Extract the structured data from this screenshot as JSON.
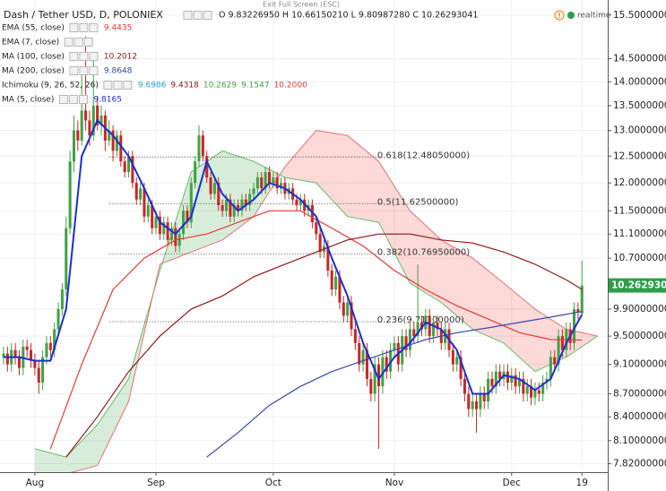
{
  "chart_data": {
    "type": "candlestick",
    "title": "Dash / Tether USD, D, POLONIEX",
    "ohlc_text": "O 9.83226950 H 10.66150210 L 9.80987280 C 10.26293041",
    "fullscreen_text": "Exit Full Screen (ESC)",
    "realtime_text": "realtime",
    "log_scale": true,
    "grid": true,
    "up_color": "#43a047",
    "down_color": "#c62828",
    "ylim": [
      7.72,
      15.86
    ],
    "xlim": [
      -0.92,
      154.6
    ],
    "yticks": [
      {
        "value": 15.5,
        "label": "15.50000000"
      },
      {
        "value": 14.5,
        "label": "14.50000000"
      },
      {
        "value": 14,
        "label": "14.00000000"
      },
      {
        "value": 13.5,
        "label": "13.50000000"
      },
      {
        "value": 13,
        "label": "13.00000000"
      },
      {
        "value": 12.5,
        "label": "12.50000000"
      },
      {
        "value": 12,
        "label": "12.00000000"
      },
      {
        "value": 11.5,
        "label": "11.50000000"
      },
      {
        "value": 11.1,
        "label": "11.10000000"
      },
      {
        "value": 10.7,
        "label": "10.70000000"
      },
      {
        "value": 9.9,
        "label": "9.90000000"
      },
      {
        "value": 9.5,
        "label": "9.50000000"
      },
      {
        "value": 9.1,
        "label": "9.10000000"
      },
      {
        "value": 8.7,
        "label": "8.70000000"
      },
      {
        "value": 8.4,
        "label": "8.40000000"
      },
      {
        "value": 8.1,
        "label": "8.10000000"
      },
      {
        "value": 7.82,
        "label": "7.82000000"
      }
    ],
    "xticks": [
      {
        "value": 8,
        "label": "Aug"
      },
      {
        "value": 39,
        "label": "Sep"
      },
      {
        "value": 69,
        "label": "Oct"
      },
      {
        "value": 100,
        "label": "Nov"
      },
      {
        "value": 130,
        "label": "Dec"
      },
      {
        "value": 148,
        "label": "19"
      }
    ],
    "last_price": 10.26293041,
    "candles": [
      [
        9.2,
        9.35,
        9.1,
        9.25
      ],
      [
        9.25,
        9.35,
        9.0,
        9.1
      ],
      [
        9.1,
        9.4,
        9.0,
        9.3
      ],
      [
        9.3,
        9.4,
        9.1,
        9.2
      ],
      [
        9.2,
        9.3,
        8.95,
        9.05
      ],
      [
        9.05,
        9.45,
        8.95,
        9.35
      ],
      [
        9.35,
        9.45,
        9.2,
        9.3
      ],
      [
        9.3,
        9.4,
        9.05,
        9.15
      ],
      [
        9.15,
        9.25,
        8.95,
        9.05
      ],
      [
        9.05,
        9.15,
        8.7,
        8.85
      ],
      [
        8.85,
        9.3,
        8.75,
        9.2
      ],
      [
        9.2,
        9.5,
        9.1,
        9.4
      ],
      [
        9.4,
        9.5,
        9.2,
        9.3
      ],
      [
        9.3,
        9.7,
        9.2,
        9.6
      ],
      [
        9.6,
        10.0,
        9.5,
        9.9
      ],
      [
        9.9,
        10.3,
        9.8,
        10.2
      ],
      [
        10.2,
        11.4,
        10.1,
        11.2
      ],
      [
        11.2,
        12.6,
        11.1,
        12.4
      ],
      [
        12.4,
        13.3,
        12.2,
        13.0
      ],
      [
        13.0,
        13.2,
        12.6,
        12.8
      ],
      [
        12.8,
        14.2,
        12.7,
        13.4
      ],
      [
        13.4,
        15.0,
        13.0,
        13.2
      ],
      [
        13.2,
        13.4,
        12.7,
        12.9
      ],
      [
        12.9,
        14.5,
        12.8,
        13.5
      ],
      [
        13.5,
        13.7,
        13.0,
        13.1
      ],
      [
        13.1,
        13.5,
        12.9,
        13.3
      ],
      [
        13.3,
        13.4,
        12.6,
        12.8
      ],
      [
        12.8,
        13.2,
        12.7,
        13.0
      ],
      [
        13.0,
        13.1,
        12.4,
        12.6
      ],
      [
        12.6,
        13.0,
        12.5,
        12.9
      ],
      [
        12.9,
        13.0,
        12.3,
        12.4
      ],
      [
        12.4,
        12.5,
        12.1,
        12.2
      ],
      [
        12.2,
        12.6,
        12.1,
        12.5
      ],
      [
        12.5,
        12.6,
        11.9,
        12.0
      ],
      [
        12.0,
        12.1,
        11.6,
        11.7
      ],
      [
        11.7,
        12.0,
        11.6,
        11.9
      ],
      [
        11.9,
        12.0,
        11.3,
        11.4
      ],
      [
        11.4,
        11.7,
        11.3,
        11.6
      ],
      [
        11.6,
        11.7,
        11.1,
        11.2
      ],
      [
        11.2,
        11.5,
        11.1,
        11.4
      ],
      [
        11.4,
        11.5,
        11.0,
        11.1
      ],
      [
        11.1,
        11.4,
        11.0,
        11.3
      ],
      [
        11.3,
        11.4,
        10.9,
        11.0
      ],
      [
        11.0,
        11.3,
        10.9,
        11.2
      ],
      [
        11.2,
        11.3,
        10.8,
        10.9
      ],
      [
        10.9,
        11.2,
        10.8,
        11.1
      ],
      [
        11.1,
        11.6,
        11.0,
        11.5
      ],
      [
        11.5,
        11.6,
        11.2,
        11.3
      ],
      [
        11.3,
        12.1,
        11.2,
        12.0
      ],
      [
        12.0,
        12.5,
        11.9,
        12.4
      ],
      [
        12.4,
        13.1,
        12.3,
        12.9
      ],
      [
        12.9,
        13.0,
        12.4,
        12.5
      ],
      [
        12.5,
        12.6,
        12.0,
        12.1
      ],
      [
        12.1,
        12.2,
        11.7,
        11.8
      ],
      [
        11.8,
        12.1,
        11.7,
        12.0
      ],
      [
        12.0,
        12.1,
        11.5,
        11.6
      ],
      [
        11.6,
        11.7,
        11.4,
        11.5
      ],
      [
        11.5,
        11.8,
        11.4,
        11.7
      ],
      [
        11.7,
        11.8,
        11.3,
        11.4
      ],
      [
        11.4,
        11.7,
        11.3,
        11.6
      ],
      [
        11.6,
        11.7,
        11.4,
        11.5
      ],
      [
        11.5,
        11.8,
        11.4,
        11.7
      ],
      [
        11.7,
        11.8,
        11.5,
        11.6
      ],
      [
        11.6,
        11.9,
        11.5,
        11.8
      ],
      [
        11.8,
        12.0,
        11.7,
        11.9
      ],
      [
        11.9,
        12.2,
        11.8,
        12.1
      ],
      [
        12.1,
        12.2,
        11.8,
        11.9
      ],
      [
        11.9,
        12.3,
        11.8,
        12.2
      ],
      [
        12.2,
        12.3,
        11.9,
        12.0
      ],
      [
        12.0,
        12.2,
        11.9,
        12.1
      ],
      [
        12.1,
        12.2,
        11.8,
        11.9
      ],
      [
        11.9,
        12.1,
        11.8,
        12.0
      ],
      [
        12.0,
        12.1,
        11.7,
        11.8
      ],
      [
        11.8,
        12.0,
        11.7,
        11.9
      ],
      [
        11.9,
        12.0,
        11.6,
        11.7
      ],
      [
        11.7,
        11.8,
        11.5,
        11.6
      ],
      [
        11.6,
        11.8,
        11.5,
        11.7
      ],
      [
        11.7,
        11.8,
        11.4,
        11.5
      ],
      [
        11.5,
        11.7,
        11.4,
        11.6
      ],
      [
        11.6,
        11.7,
        11.2,
        11.3
      ],
      [
        11.3,
        11.4,
        11.0,
        11.1
      ],
      [
        11.1,
        11.2,
        10.7,
        10.8
      ],
      [
        10.8,
        11.0,
        10.7,
        10.9
      ],
      [
        10.9,
        11.0,
        10.4,
        10.5
      ],
      [
        10.5,
        10.6,
        10.1,
        10.2
      ],
      [
        10.2,
        10.5,
        10.1,
        10.4
      ],
      [
        10.4,
        10.5,
        9.9,
        10.0
      ],
      [
        10.0,
        10.1,
        9.7,
        9.8
      ],
      [
        9.8,
        10.1,
        9.7,
        10.0
      ],
      [
        10.0,
        10.1,
        9.5,
        9.6
      ],
      [
        9.6,
        9.7,
        9.3,
        9.4
      ],
      [
        9.4,
        9.5,
        9.0,
        9.1
      ],
      [
        9.1,
        9.4,
        9.0,
        9.3
      ],
      [
        9.3,
        9.4,
        8.8,
        8.9
      ],
      [
        8.9,
        9.0,
        8.6,
        8.7
      ],
      [
        8.7,
        9.2,
        8.6,
        9.1
      ],
      [
        9.1,
        9.2,
        8.0,
        8.8
      ],
      [
        8.8,
        9.3,
        8.7,
        9.2
      ],
      [
        9.2,
        9.3,
        8.9,
        9.0
      ],
      [
        9.0,
        9.4,
        8.9,
        9.3
      ],
      [
        9.3,
        9.5,
        9.2,
        9.4
      ],
      [
        9.4,
        9.5,
        9.0,
        9.1
      ],
      [
        9.1,
        9.6,
        9.0,
        9.5
      ],
      [
        9.5,
        9.6,
        9.2,
        9.3
      ],
      [
        9.3,
        9.7,
        9.2,
        9.6
      ],
      [
        9.6,
        9.7,
        9.4,
        9.5
      ],
      [
        9.5,
        10.6,
        9.4,
        9.7
      ],
      [
        9.7,
        9.8,
        9.5,
        9.6
      ],
      [
        9.6,
        9.9,
        9.5,
        9.8
      ],
      [
        9.8,
        9.9,
        9.4,
        9.5
      ],
      [
        9.5,
        9.8,
        9.4,
        9.7
      ],
      [
        9.7,
        9.8,
        9.5,
        9.6
      ],
      [
        9.6,
        9.7,
        9.3,
        9.4
      ],
      [
        9.4,
        9.7,
        9.3,
        9.6
      ],
      [
        9.6,
        9.7,
        9.2,
        9.3
      ],
      [
        9.3,
        9.4,
        9.0,
        9.1
      ],
      [
        9.1,
        9.3,
        9.0,
        9.2
      ],
      [
        9.2,
        9.3,
        8.8,
        8.9
      ],
      [
        8.9,
        9.0,
        8.6,
        8.7
      ],
      [
        8.7,
        8.8,
        8.4,
        8.5
      ],
      [
        8.5,
        8.7,
        8.4,
        8.6
      ],
      [
        8.6,
        8.7,
        8.2,
        8.5
      ],
      [
        8.5,
        8.8,
        8.4,
        8.7
      ],
      [
        8.7,
        8.8,
        8.5,
        8.6
      ],
      [
        8.6,
        9.0,
        8.5,
        8.9
      ],
      [
        8.9,
        9.0,
        8.7,
        8.8
      ],
      [
        8.8,
        9.1,
        8.7,
        9.0
      ],
      [
        9.0,
        9.1,
        8.8,
        8.9
      ],
      [
        8.9,
        9.1,
        8.8,
        9.0
      ],
      [
        9.0,
        9.1,
        8.75,
        8.85
      ],
      [
        8.85,
        9.05,
        8.75,
        8.95
      ],
      [
        8.95,
        9.05,
        8.7,
        8.8
      ],
      [
        8.8,
        9.0,
        8.7,
        8.9
      ],
      [
        8.9,
        9.0,
        8.6,
        8.7
      ],
      [
        8.7,
        8.9,
        8.6,
        8.8
      ],
      [
        8.8,
        8.9,
        8.55,
        8.65
      ],
      [
        8.65,
        8.85,
        8.55,
        8.75
      ],
      [
        8.75,
        8.85,
        8.6,
        8.7
      ],
      [
        8.7,
        8.95,
        8.6,
        8.85
      ],
      [
        8.85,
        9.0,
        8.75,
        8.9
      ],
      [
        8.9,
        9.3,
        8.8,
        9.2
      ],
      [
        9.2,
        9.3,
        9.0,
        9.1
      ],
      [
        9.1,
        9.6,
        9.0,
        9.5
      ],
      [
        9.5,
        9.6,
        9.2,
        9.3
      ],
      [
        9.3,
        9.7,
        9.2,
        9.6
      ],
      [
        9.6,
        9.7,
        9.3,
        9.4
      ],
      [
        9.4,
        10.0,
        9.3,
        9.9
      ],
      [
        9.9,
        10.0,
        9.75,
        9.85
      ],
      [
        9.8322695,
        10.6615021,
        9.8098728,
        10.26293041
      ]
    ],
    "fib_x": [
      27,
      97
    ],
    "fib": [
      {
        "level": 12.4805,
        "label": "0.618(12.48050000)"
      },
      {
        "level": 11.625,
        "label": "0.5(11.62500000)"
      },
      {
        "level": 10.7695,
        "label": "0.382(10.76950000)"
      },
      {
        "level": 9.711,
        "label": "0.236(9.71100000)"
      }
    ],
    "series": [
      {
        "name": "EMA (55, close)",
        "color": "#e53935",
        "legend_values": [
          "9.4435"
        ],
        "x": [
          12,
          20,
          28,
          36,
          44,
          52,
          60,
          68,
          76,
          84,
          92,
          100,
          108,
          116,
          124,
          132,
          140,
          148
        ],
        "values": [
          8.0,
          9.1,
          10.2,
          10.7,
          11.0,
          11.1,
          11.3,
          11.5,
          11.5,
          11.2,
          10.9,
          10.5,
          10.2,
          9.95,
          9.75,
          9.55,
          9.45,
          9.4435
        ]
      },
      {
        "name": "EMA (7, close)",
        "color": "#2e7d32",
        "legend_values": []
      },
      {
        "name": "MA (100, close)",
        "color": "#8b1a1a",
        "legend_values": [
          "10.2012"
        ],
        "x": [
          16,
          24,
          32,
          40,
          48,
          56,
          64,
          72,
          80,
          88,
          96,
          104,
          112,
          120,
          128,
          136,
          144,
          148
        ],
        "values": [
          7.9,
          8.4,
          9.0,
          9.5,
          9.9,
          10.1,
          10.4,
          10.6,
          10.8,
          11.0,
          11.1,
          11.1,
          11.0,
          10.95,
          10.8,
          10.6,
          10.35,
          10.2012
        ]
      },
      {
        "name": "MA (200, close)",
        "color": "#3949ab",
        "legend_values": [
          "9.8648"
        ],
        "x": [
          52,
          60,
          68,
          76,
          84,
          92,
          100,
          108,
          116,
          124,
          132,
          140,
          148
        ],
        "values": [
          7.9,
          8.2,
          8.55,
          8.8,
          9.0,
          9.15,
          9.3,
          9.45,
          9.55,
          9.62,
          9.7,
          9.78,
          9.8648
        ]
      },
      {
        "name": "Ichimoku (9, 26, 52, 26)",
        "color": "#4caf50",
        "legend_values": [
          "9.6986",
          "9.4318",
          "10.2629",
          "9.1547",
          "10.2000"
        ],
        "legend_colors": [
          "#29a3d6",
          "#8b1a1a",
          "#43a047",
          "#43a047",
          "#e53935"
        ],
        "span_a": {
          "color": "#66bb6a",
          "x": [
            8,
            16,
            24,
            32,
            40,
            48,
            56,
            64,
            72,
            80,
            88,
            96,
            104,
            112,
            120,
            128,
            136,
            144,
            152
          ],
          "values": [
            8.0,
            7.9,
            8.3,
            8.9,
            10.5,
            12.2,
            12.6,
            12.4,
            12.1,
            12.0,
            11.4,
            11.3,
            10.3,
            10.0,
            9.6,
            9.4,
            9.0,
            9.2,
            9.5
          ]
        },
        "span_b": {
          "color": "#e57373",
          "x": [
            8,
            16,
            24,
            32,
            40,
            48,
            56,
            64,
            72,
            80,
            88,
            96,
            104,
            112,
            120,
            128,
            136,
            144,
            152
          ],
          "values": [
            7.5,
            7.7,
            7.8,
            8.6,
            10.6,
            10.8,
            11.0,
            11.4,
            12.3,
            13.0,
            12.9,
            12.4,
            11.5,
            11.0,
            10.7,
            10.3,
            9.9,
            9.6,
            9.5
          ]
        }
      },
      {
        "name": "MA (5, close)",
        "color": "#1a2fd0",
        "legend_values": [
          "9.8165"
        ],
        "x": [
          0,
          4,
          8,
          12,
          16,
          20,
          24,
          28,
          32,
          36,
          40,
          44,
          48,
          52,
          56,
          60,
          64,
          68,
          72,
          76,
          80,
          84,
          88,
          92,
          96,
          100,
          104,
          108,
          112,
          116,
          120,
          124,
          128,
          132,
          136,
          140,
          144,
          148
        ],
        "values": [
          9.2,
          9.2,
          9.15,
          9.15,
          9.9,
          12.5,
          13.2,
          12.9,
          12.5,
          11.9,
          11.3,
          11.1,
          11.4,
          12.4,
          11.8,
          11.5,
          11.7,
          12.0,
          11.9,
          11.7,
          11.4,
          10.7,
          10.1,
          9.4,
          8.9,
          9.2,
          9.4,
          9.7,
          9.6,
          9.3,
          8.7,
          8.7,
          8.95,
          8.9,
          8.75,
          8.9,
          9.4,
          9.8165
        ]
      }
    ]
  }
}
